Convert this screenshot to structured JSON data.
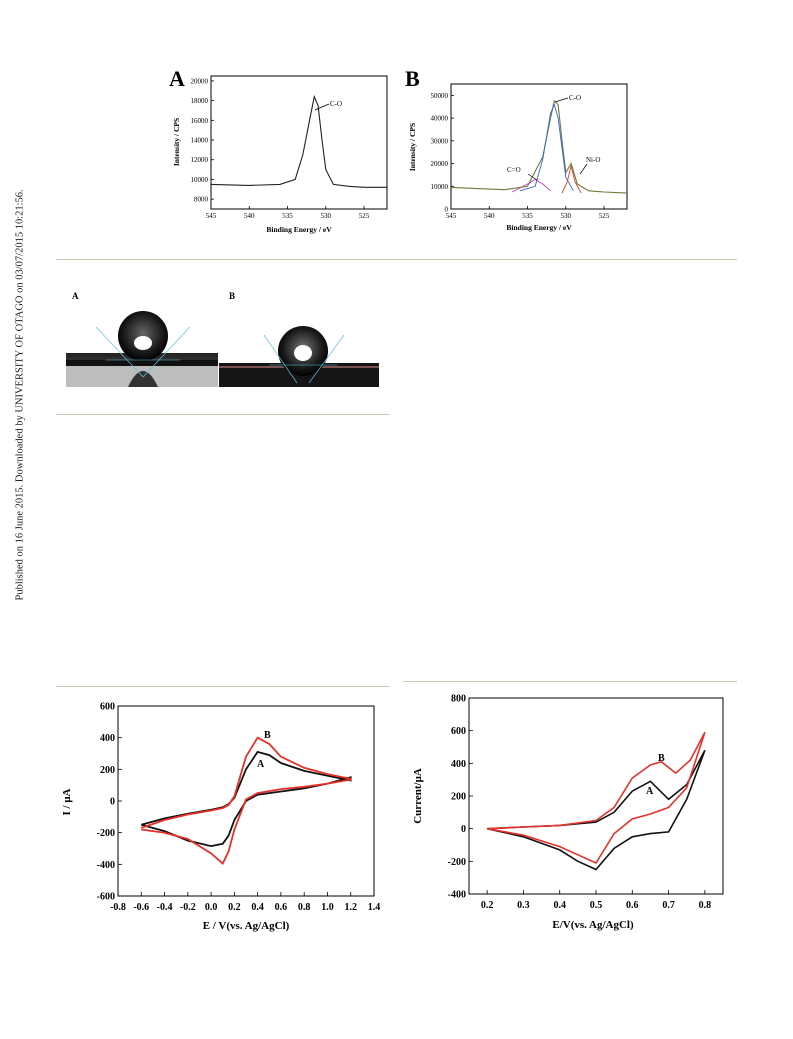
{
  "sidebar_text": "Published on 16 June 2015. Downloaded by UNIVERSITY OF OTAGO on 03/07/2015 10:21:56.",
  "xps_panels": [
    {
      "letter": "A",
      "xlabel": "Binding Energy / eV",
      "ylabel": "Intensity / CPS",
      "xticks": [
        "545",
        "540",
        "535",
        "530",
        "525"
      ],
      "yticks": [
        "8000",
        "10000",
        "12000",
        "14000",
        "16000",
        "18000",
        "20000"
      ],
      "annotations": [
        "C-O"
      ]
    },
    {
      "letter": "B",
      "xlabel": "Binding Energy / eV",
      "ylabel": "Intensity / CPS",
      "xticks": [
        "545",
        "540",
        "535",
        "530",
        "525"
      ],
      "yticks": [
        "0",
        "10000",
        "20000",
        "30000",
        "40000",
        "50000"
      ],
      "annotations": [
        "C-O",
        "C=O",
        "Ni-O"
      ]
    }
  ],
  "contact_angle": {
    "labels": [
      "A",
      "B"
    ]
  },
  "cv_panels": [
    {
      "xlabel": "E / V(vs. Ag/AgCl)",
      "ylabel": "I / μA",
      "xticks": [
        "-0.8",
        "-0.6",
        "-0.4",
        "-0.2",
        "0.0",
        "0.2",
        "0.4",
        "0.6",
        "0.8",
        "1.0",
        "1.2",
        "1.4"
      ],
      "yticks": [
        "-600",
        "-400",
        "-200",
        "0",
        "200",
        "400",
        "600"
      ],
      "curve_labels": [
        "A",
        "B"
      ]
    },
    {
      "xlabel": "E/V(vs. Ag/AgCl)",
      "ylabel": "Current/μA",
      "xticks": [
        "0.2",
        "0.3",
        "0.4",
        "0.5",
        "0.6",
        "0.7",
        "0.8"
      ],
      "yticks": [
        "-400",
        "-200",
        "0",
        "200",
        "400",
        "600",
        "800"
      ],
      "curve_labels": [
        "A",
        "B"
      ]
    }
  ],
  "chart_data": [
    {
      "type": "line",
      "xlabel": "Binding Energy / eV",
      "ylabel": "Intensity / CPS",
      "xlim": [
        545,
        522
      ],
      "ylim": [
        7000,
        20000
      ],
      "series": [
        {
          "x": [
            545,
            540,
            536,
            534,
            533,
            532,
            531.5,
            531,
            530.5,
            530,
            529,
            527,
            525,
            522
          ],
          "y": [
            9500,
            9400,
            9500,
            10000,
            12500,
            16500,
            18400,
            17500,
            14000,
            11000,
            9500,
            9300,
            9200,
            9200
          ]
        }
      ]
    },
    {
      "type": "line",
      "xlabel": "Binding Energy / eV",
      "ylabel": "Intensity / CPS",
      "xlim": [
        545,
        522
      ],
      "ylim": [
        0,
        55000
      ],
      "series": [
        {
          "x": [
            545,
            538,
            535,
            533,
            532,
            531.5,
            531,
            530.5,
            530,
            529.3,
            528.5,
            527,
            525,
            522
          ],
          "y": [
            9500,
            8500,
            10000,
            23000,
            40000,
            47500,
            46000,
            30000,
            16000,
            20000,
            11000,
            8000,
            7500,
            7000
          ]
        },
        {
          "x": [
            536,
            534,
            533,
            532,
            531.5,
            531,
            530,
            529
          ],
          "y": [
            8000,
            10000,
            22000,
            42000,
            46000,
            40000,
            14000,
            8000
          ]
        },
        {
          "x": [
            537,
            535,
            534,
            533,
            532
          ],
          "y": [
            7500,
            11000,
            13000,
            11000,
            8000
          ]
        },
        {
          "x": [
            530.5,
            529.8,
            529.3,
            528.8,
            528
          ],
          "y": [
            7000,
            12000,
            19000,
            12000,
            7000
          ]
        }
      ]
    },
    {
      "type": "line",
      "xlabel": "E / V(vs. Ag/AgCl)",
      "ylabel": "I / μA",
      "xlim": [
        -0.8,
        1.4
      ],
      "ylim": [
        -600,
        600
      ],
      "series": [
        {
          "name": "A",
          "x": [
            -0.6,
            -0.4,
            -0.2,
            0.0,
            0.1,
            0.15,
            0.2,
            0.3,
            0.4,
            0.5,
            0.6,
            0.8,
            1.0,
            1.2,
            1.2,
            1.0,
            0.8,
            0.6,
            0.4,
            0.3,
            0.2,
            0.15,
            0.1,
            0.0,
            -0.2,
            -0.4,
            -0.6
          ],
          "y": [
            -150,
            -110,
            -80,
            -55,
            -40,
            -20,
            20,
            200,
            310,
            290,
            240,
            190,
            160,
            130,
            150,
            110,
            80,
            60,
            40,
            0,
            -120,
            -220,
            -270,
            -285,
            -250,
            -190,
            -150
          ]
        },
        {
          "name": "B",
          "x": [
            -0.6,
            -0.4,
            -0.2,
            0.0,
            0.1,
            0.15,
            0.2,
            0.3,
            0.4,
            0.5,
            0.6,
            0.8,
            1.0,
            1.2,
            1.2,
            1.0,
            0.8,
            0.6,
            0.4,
            0.3,
            0.2,
            0.15,
            0.1,
            0.0,
            -0.2,
            -0.4,
            -0.6
          ],
          "y": [
            -170,
            -120,
            -85,
            -60,
            -45,
            -25,
            30,
            280,
            400,
            360,
            280,
            210,
            170,
            140,
            135,
            110,
            90,
            75,
            50,
            10,
            -180,
            -320,
            -395,
            -330,
            -240,
            -200,
            -180
          ]
        }
      ]
    },
    {
      "type": "line",
      "xlabel": "E/V(vs. Ag/AgCl)",
      "ylabel": "Current/μA",
      "xlim": [
        0.15,
        0.85
      ],
      "ylim": [
        -400,
        800
      ],
      "series": [
        {
          "name": "A",
          "x": [
            0.2,
            0.3,
            0.4,
            0.5,
            0.55,
            0.6,
            0.65,
            0.7,
            0.75,
            0.8,
            0.8,
            0.75,
            0.7,
            0.65,
            0.6,
            0.55,
            0.5,
            0.45,
            0.4,
            0.3,
            0.2
          ],
          "y": [
            0,
            10,
            20,
            40,
            100,
            230,
            290,
            180,
            270,
            480,
            480,
            180,
            -20,
            -30,
            -50,
            -120,
            -250,
            -200,
            -130,
            -50,
            0
          ]
        },
        {
          "name": "B",
          "x": [
            0.2,
            0.3,
            0.4,
            0.5,
            0.55,
            0.6,
            0.65,
            0.68,
            0.72,
            0.76,
            0.8,
            0.8,
            0.75,
            0.7,
            0.65,
            0.6,
            0.55,
            0.5,
            0.45,
            0.4,
            0.3,
            0.2
          ],
          "y": [
            0,
            10,
            20,
            50,
            130,
            310,
            390,
            410,
            340,
            420,
            590,
            590,
            250,
            130,
            90,
            60,
            -30,
            -210,
            -160,
            -110,
            -40,
            0
          ]
        }
      ]
    }
  ]
}
